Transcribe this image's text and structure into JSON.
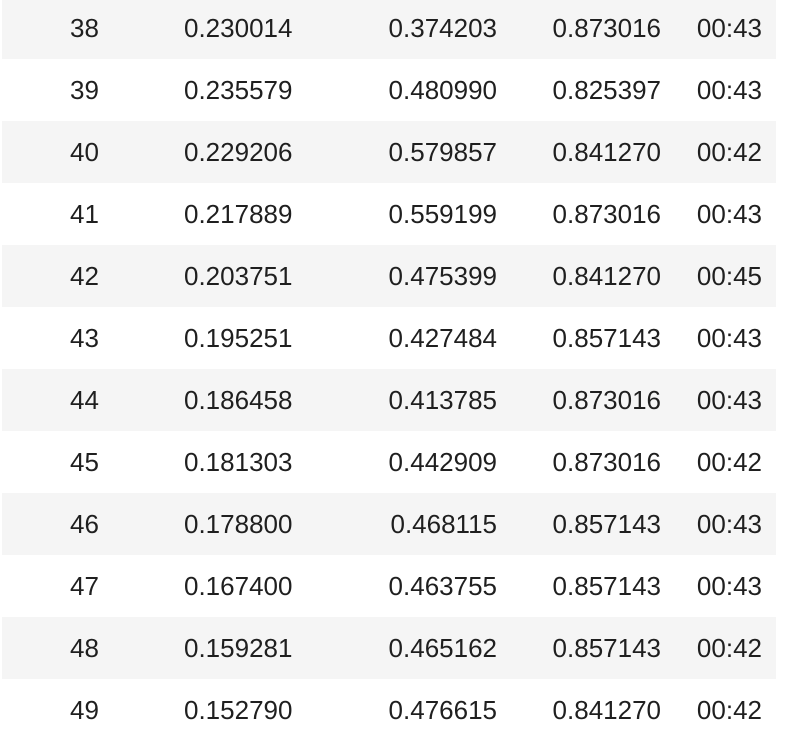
{
  "results_table": {
    "rows": [
      {
        "epoch": "38",
        "train_loss": "0.230014",
        "valid_loss": "0.374203",
        "accuracy": "0.873016",
        "time": "00:43"
      },
      {
        "epoch": "39",
        "train_loss": "0.235579",
        "valid_loss": "0.480990",
        "accuracy": "0.825397",
        "time": "00:43"
      },
      {
        "epoch": "40",
        "train_loss": "0.229206",
        "valid_loss": "0.579857",
        "accuracy": "0.841270",
        "time": "00:42"
      },
      {
        "epoch": "41",
        "train_loss": "0.217889",
        "valid_loss": "0.559199",
        "accuracy": "0.873016",
        "time": "00:43"
      },
      {
        "epoch": "42",
        "train_loss": "0.203751",
        "valid_loss": "0.475399",
        "accuracy": "0.841270",
        "time": "00:45"
      },
      {
        "epoch": "43",
        "train_loss": "0.195251",
        "valid_loss": "0.427484",
        "accuracy": "0.857143",
        "time": "00:43"
      },
      {
        "epoch": "44",
        "train_loss": "0.186458",
        "valid_loss": "0.413785",
        "accuracy": "0.873016",
        "time": "00:43"
      },
      {
        "epoch": "45",
        "train_loss": "0.181303",
        "valid_loss": "0.442909",
        "accuracy": "0.873016",
        "time": "00:42"
      },
      {
        "epoch": "46",
        "train_loss": "0.178800",
        "valid_loss": "0.468115",
        "accuracy": "0.857143",
        "time": "00:43"
      },
      {
        "epoch": "47",
        "train_loss": "0.167400",
        "valid_loss": "0.463755",
        "accuracy": "0.857143",
        "time": "00:43"
      },
      {
        "epoch": "48",
        "train_loss": "0.159281",
        "valid_loss": "0.465162",
        "accuracy": "0.857143",
        "time": "00:42"
      },
      {
        "epoch": "49",
        "train_loss": "0.152790",
        "valid_loss": "0.476615",
        "accuracy": "0.841270",
        "time": "00:42"
      }
    ]
  },
  "colors": {
    "striped_row_background": "#f5f5f5",
    "plain_row_background": "#ffffff",
    "text": "#1f1f1f"
  }
}
